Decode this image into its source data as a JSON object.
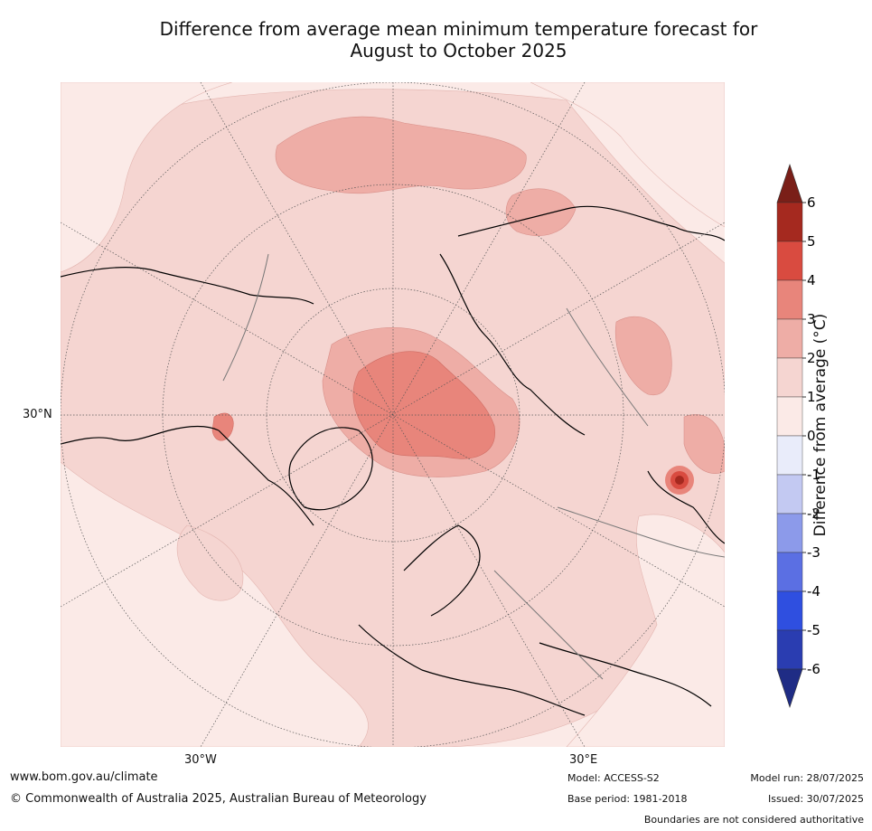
{
  "title_line1": "Difference from average mean minimum temperature forecast for",
  "title_line2": "August to October 2025",
  "lat_label": "30°N",
  "lon_labels": [
    "30°W",
    "30°E"
  ],
  "colorbar": {
    "label": "Difference from average (°C)",
    "ticks": [
      "6",
      "5",
      "4",
      "3",
      "2",
      "1",
      "0",
      "-1",
      "-2",
      "-3",
      "-4",
      "-5",
      "-6"
    ],
    "colors": [
      "#a5291f",
      "#d94b40",
      "#e8857b",
      "#eeada6",
      "#f5d5d1",
      "#fbeae7",
      "#e9ecfa",
      "#c3c9f2",
      "#8c9aea",
      "#5b6fe3",
      "#2f4fe0",
      "#2a3db1"
    ],
    "over_color": "#7a1f18",
    "under_color": "#1f2c85"
  },
  "footer": {
    "url": "www.bom.gov.au/climate",
    "copyright": "© Commonwealth of Australia 2025, Australian Bureau of Meteorology",
    "model": "Model: ACCESS-S2",
    "base_period": "Base period: 1981-2018",
    "model_run": "Model run: 28/07/2025",
    "issued": "Issued: 30/07/2025",
    "boundaries": "Boundaries are not considered authoritative"
  }
}
